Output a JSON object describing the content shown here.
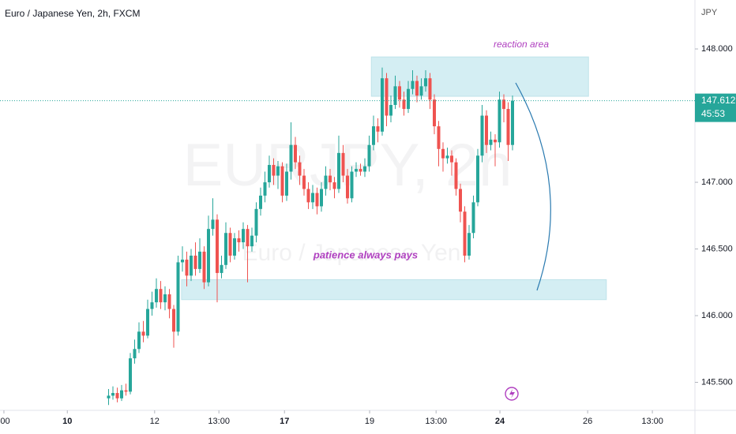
{
  "chart_data": {
    "type": "candlestick",
    "title": "Euro / Japanese Yen, 2h, FXCM",
    "watermark": "EURJPY, 2h",
    "watermark_subtitle": "Euro / Japanese Yen",
    "y_unit": "JPY",
    "up_color": "#26a69a",
    "down_color": "#ef5350",
    "xlim": [
      -25,
      135
    ],
    "ylim": [
      145.29,
      148.367
    ],
    "xticks": [
      {
        "value": -24.1,
        "label": ":00"
      },
      {
        "value": -9.5,
        "label": "10"
      },
      {
        "value": 10.6,
        "label": "12"
      },
      {
        "value": 25.4,
        "label": "13:00"
      },
      {
        "value": 40.5,
        "label": "17"
      },
      {
        "value": 60.1,
        "label": "19"
      },
      {
        "value": 75.4,
        "label": "13:00"
      },
      {
        "value": 90.1,
        "label": "24"
      },
      {
        "value": 110.3,
        "label": "26"
      },
      {
        "value": 125.2,
        "label": "13:00"
      }
    ],
    "yticks": [
      {
        "value": 148,
        "label": "148.000"
      },
      {
        "value": 147,
        "label": "147.000"
      },
      {
        "value": 146.5,
        "label": "146.500"
      },
      {
        "value": 146,
        "label": "146.000"
      },
      {
        "value": 145.5,
        "label": "145.500"
      }
    ],
    "last_price": 147.612,
    "countdown": "45:53",
    "zones": [
      {
        "label": "reaction area",
        "top": 147.94,
        "bottom": 147.645,
        "x": [
          60.5,
          110.5
        ]
      },
      {
        "label": "patience always pays",
        "top": 146.27,
        "bottom": 146.12,
        "x": [
          16.8,
          114.6
        ]
      }
    ],
    "candles": [
      [
        145.38,
        145.45,
        145.33,
        145.4
      ],
      [
        145.4,
        145.47,
        145.37,
        145.42
      ],
      [
        145.42,
        145.46,
        145.35,
        145.38
      ],
      [
        145.38,
        145.48,
        145.36,
        145.44
      ],
      [
        145.44,
        145.49,
        145.4,
        145.43
      ],
      [
        145.43,
        145.72,
        145.41,
        145.68
      ],
      [
        145.68,
        145.82,
        145.64,
        145.75
      ],
      [
        145.75,
        145.95,
        145.72,
        145.88
      ],
      [
        145.88,
        145.96,
        145.8,
        145.85
      ],
      [
        145.85,
        146.12,
        145.83,
        146.05
      ],
      [
        146.05,
        146.18,
        146.0,
        146.1
      ],
      [
        146.1,
        146.28,
        146.06,
        146.2
      ],
      [
        146.2,
        146.26,
        146.05,
        146.1
      ],
      [
        146.1,
        146.22,
        146.04,
        146.16
      ],
      [
        146.16,
        146.2,
        145.98,
        146.05
      ],
      [
        146.05,
        146.08,
        145.76,
        145.88
      ],
      [
        145.88,
        146.45,
        145.85,
        146.4
      ],
      [
        146.4,
        146.52,
        146.33,
        146.42
      ],
      [
        146.42,
        146.48,
        146.22,
        146.3
      ],
      [
        146.3,
        146.5,
        146.26,
        146.45
      ],
      [
        146.45,
        146.55,
        146.3,
        146.35
      ],
      [
        146.35,
        146.58,
        146.32,
        146.48
      ],
      [
        146.48,
        146.52,
        146.2,
        146.25
      ],
      [
        146.25,
        146.75,
        146.22,
        146.65
      ],
      [
        146.65,
        146.88,
        146.6,
        146.72
      ],
      [
        146.72,
        146.76,
        146.1,
        146.32
      ],
      [
        146.32,
        146.45,
        146.28,
        146.38
      ],
      [
        146.38,
        146.7,
        146.35,
        146.62
      ],
      [
        146.62,
        146.66,
        146.4,
        146.45
      ],
      [
        146.45,
        146.62,
        146.42,
        146.58
      ],
      [
        146.58,
        146.64,
        146.48,
        146.55
      ],
      [
        146.55,
        146.7,
        146.5,
        146.65
      ],
      [
        146.65,
        146.68,
        146.25,
        146.52
      ],
      [
        146.52,
        146.66,
        146.48,
        146.6
      ],
      [
        146.6,
        146.85,
        146.55,
        146.8
      ],
      [
        146.8,
        146.96,
        146.75,
        146.9
      ],
      [
        146.9,
        147.08,
        146.85,
        147.0
      ],
      [
        147.0,
        147.2,
        146.96,
        147.13
      ],
      [
        147.13,
        147.18,
        146.98,
        147.05
      ],
      [
        147.05,
        147.16,
        146.95,
        147.12
      ],
      [
        147.12,
        147.15,
        146.85,
        146.9
      ],
      [
        146.9,
        147.14,
        146.86,
        147.08
      ],
      [
        147.08,
        147.45,
        147.02,
        147.28
      ],
      [
        147.28,
        147.34,
        147.1,
        147.15
      ],
      [
        147.15,
        147.2,
        146.98,
        147.05
      ],
      [
        147.05,
        147.1,
        146.9,
        146.95
      ],
      [
        146.95,
        147.0,
        146.8,
        146.85
      ],
      [
        146.85,
        146.98,
        146.8,
        146.92
      ],
      [
        146.92,
        146.96,
        146.76,
        146.82
      ],
      [
        146.82,
        147.0,
        146.78,
        146.95
      ],
      [
        146.95,
        147.12,
        146.9,
        147.05
      ],
      [
        147.05,
        147.1,
        146.94,
        147.0
      ],
      [
        147.0,
        147.04,
        146.88,
        146.95
      ],
      [
        146.95,
        147.35,
        146.92,
        147.22
      ],
      [
        147.22,
        147.28,
        147.0,
        147.05
      ],
      [
        147.05,
        147.1,
        146.84,
        146.88
      ],
      [
        146.88,
        147.12,
        146.85,
        147.08
      ],
      [
        147.08,
        147.15,
        147.04,
        147.1
      ],
      [
        147.1,
        147.14,
        147.05,
        147.08
      ],
      [
        147.08,
        147.18,
        147.04,
        147.12
      ],
      [
        147.12,
        147.35,
        147.08,
        147.28
      ],
      [
        147.28,
        147.5,
        147.24,
        147.42
      ],
      [
        147.42,
        147.48,
        147.3,
        147.38
      ],
      [
        147.38,
        147.86,
        147.35,
        147.78
      ],
      [
        147.78,
        147.82,
        147.42,
        147.5
      ],
      [
        147.5,
        147.65,
        147.45,
        147.58
      ],
      [
        147.58,
        147.8,
        147.55,
        147.72
      ],
      [
        147.72,
        147.76,
        147.56,
        147.62
      ],
      [
        147.62,
        147.68,
        147.5,
        147.55
      ],
      [
        147.55,
        147.76,
        147.52,
        147.7
      ],
      [
        147.7,
        147.84,
        147.66,
        147.76
      ],
      [
        147.76,
        147.8,
        147.6,
        147.65
      ],
      [
        147.65,
        147.78,
        147.62,
        147.72
      ],
      [
        147.72,
        147.84,
        147.68,
        147.78
      ],
      [
        147.78,
        147.82,
        147.55,
        147.62
      ],
      [
        147.62,
        147.66,
        147.36,
        147.42
      ],
      [
        147.42,
        147.46,
        147.12,
        147.25
      ],
      [
        147.25,
        147.3,
        147.08,
        147.18
      ],
      [
        147.18,
        147.26,
        147.14,
        147.2
      ],
      [
        147.2,
        147.24,
        147.05,
        147.15
      ],
      [
        147.15,
        147.18,
        146.9,
        146.95
      ],
      [
        146.95,
        146.99,
        146.7,
        146.78
      ],
      [
        146.78,
        146.82,
        146.4,
        146.45
      ],
      [
        146.45,
        146.68,
        146.42,
        146.62
      ],
      [
        146.62,
        146.9,
        146.58,
        146.85
      ],
      [
        146.85,
        147.25,
        146.82,
        147.2
      ],
      [
        147.2,
        147.58,
        147.15,
        147.5
      ],
      [
        147.5,
        147.54,
        147.22,
        147.28
      ],
      [
        147.28,
        147.38,
        147.24,
        147.32
      ],
      [
        147.32,
        147.36,
        147.12,
        147.3
      ],
      [
        147.3,
        147.68,
        147.26,
        147.62
      ],
      [
        147.62,
        147.66,
        147.45,
        147.55
      ],
      [
        147.55,
        147.6,
        147.16,
        147.28
      ],
      [
        147.28,
        147.65,
        147.24,
        147.612
      ]
    ]
  }
}
